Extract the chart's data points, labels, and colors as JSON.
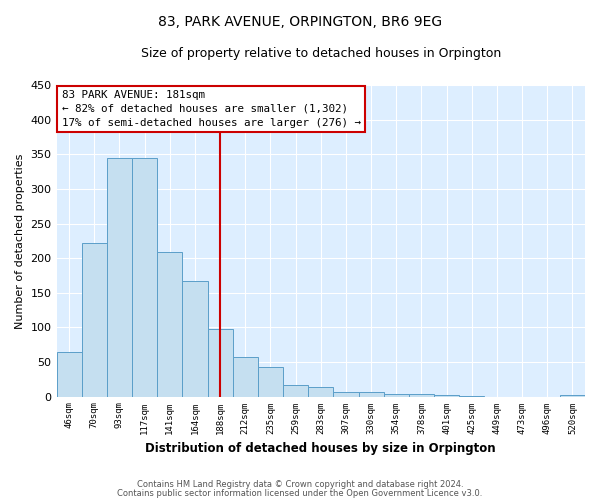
{
  "title": "83, PARK AVENUE, ORPINGTON, BR6 9EG",
  "subtitle": "Size of property relative to detached houses in Orpington",
  "xlabel": "Distribution of detached houses by size in Orpington",
  "ylabel": "Number of detached properties",
  "bar_labels": [
    "46sqm",
    "70sqm",
    "93sqm",
    "117sqm",
    "141sqm",
    "164sqm",
    "188sqm",
    "212sqm",
    "235sqm",
    "259sqm",
    "283sqm",
    "307sqm",
    "330sqm",
    "354sqm",
    "378sqm",
    "401sqm",
    "425sqm",
    "449sqm",
    "473sqm",
    "496sqm",
    "520sqm"
  ],
  "bar_values": [
    65,
    222,
    345,
    345,
    209,
    167,
    97,
    57,
    43,
    16,
    14,
    7,
    7,
    4,
    3,
    2,
    1,
    0,
    0,
    0,
    2
  ],
  "bar_color": "#c5dff0",
  "bar_edge_color": "#5b9ec9",
  "vline_x_index": 6,
  "vline_color": "#cc0000",
  "ylim": [
    0,
    450
  ],
  "yticks": [
    0,
    50,
    100,
    150,
    200,
    250,
    300,
    350,
    400,
    450
  ],
  "annotation_title": "83 PARK AVENUE: 181sqm",
  "annotation_line1": "← 82% of detached houses are smaller (1,302)",
  "annotation_line2": "17% of semi-detached houses are larger (276) →",
  "annotation_box_color": "#ffffff",
  "annotation_box_edge": "#cc0000",
  "footer1": "Contains HM Land Registry data © Crown copyright and database right 2024.",
  "footer2": "Contains public sector information licensed under the Open Government Licence v3.0.",
  "bg_color": "#ddeeff",
  "grid_color": "#ffffff",
  "fig_bg": "#ffffff"
}
